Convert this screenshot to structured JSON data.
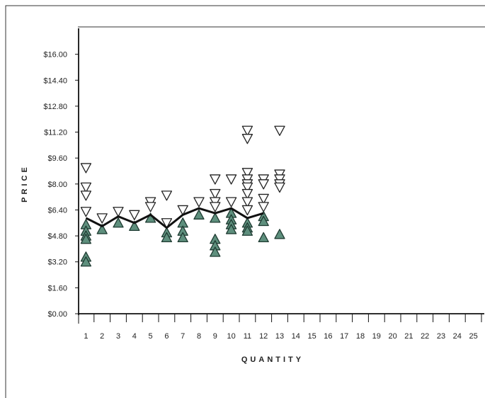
{
  "chart_data": {
    "type": "scatter",
    "xlabel": "QUANTITY",
    "ylabel": "PRICE",
    "xlim": [
      0.5,
      25.5
    ],
    "ylim": [
      0,
      17.6
    ],
    "x_ticks": [
      "1",
      "2",
      "3",
      "4",
      "5",
      "6",
      "7",
      "8",
      "9",
      "10",
      "11",
      "12",
      "13",
      "14",
      "15",
      "16",
      "17",
      "18",
      "19",
      "20",
      "21",
      "22",
      "23",
      "24",
      "25"
    ],
    "y_ticks": [
      {
        "value": 0.0,
        "label": "$0.00"
      },
      {
        "value": 1.6,
        "label": "$1.60"
      },
      {
        "value": 3.2,
        "label": "$3.20"
      },
      {
        "value": 4.8,
        "label": "$4.80"
      },
      {
        "value": 6.4,
        "label": "$6.40"
      },
      {
        "value": 8.0,
        "label": "$8.00"
      },
      {
        "value": 9.6,
        "label": "$9.60"
      },
      {
        "value": 11.2,
        "label": "$11.20"
      },
      {
        "value": 12.8,
        "label": "$12.80"
      },
      {
        "value": 14.4,
        "label": "$14.40"
      },
      {
        "value": 16.0,
        "label": "$16.00"
      }
    ],
    "grid": false,
    "series": [
      {
        "marker": "open-down-triangle",
        "color": "#ffffff",
        "stroke": "#222222",
        "points": [
          [
            1,
            9.0
          ],
          [
            1,
            7.8
          ],
          [
            1,
            7.3
          ],
          [
            1,
            6.3
          ],
          [
            2,
            5.9
          ],
          [
            3,
            6.3
          ],
          [
            4,
            6.1
          ],
          [
            5,
            6.9
          ],
          [
            5,
            6.6
          ],
          [
            6,
            7.3
          ],
          [
            6,
            5.6
          ],
          [
            7,
            6.4
          ],
          [
            8,
            6.9
          ],
          [
            9,
            8.3
          ],
          [
            9,
            7.4
          ],
          [
            9,
            6.9
          ],
          [
            9,
            6.6
          ],
          [
            10,
            8.3
          ],
          [
            10,
            6.9
          ],
          [
            11,
            11.3
          ],
          [
            11,
            10.8
          ],
          [
            11,
            8.7
          ],
          [
            11,
            8.3
          ],
          [
            11,
            8.0
          ],
          [
            11,
            7.8
          ],
          [
            11,
            7.4
          ],
          [
            11,
            6.9
          ],
          [
            11,
            6.4
          ],
          [
            12,
            8.3
          ],
          [
            12,
            8.0
          ],
          [
            12,
            7.1
          ],
          [
            12,
            6.6
          ],
          [
            13,
            11.3
          ],
          [
            13,
            8.6
          ],
          [
            13,
            8.3
          ],
          [
            13,
            8.0
          ],
          [
            13,
            7.8
          ]
        ]
      },
      {
        "marker": "filled-up-triangle",
        "color": "#5e8f7d",
        "stroke": "#1f3b32",
        "points": [
          [
            1,
            5.5
          ],
          [
            1,
            5.1
          ],
          [
            1,
            4.8
          ],
          [
            1,
            4.6
          ],
          [
            1,
            3.5
          ],
          [
            1,
            3.2
          ],
          [
            2,
            5.2
          ],
          [
            3,
            5.6
          ],
          [
            4,
            5.4
          ],
          [
            5,
            5.9
          ],
          [
            6,
            5.0
          ],
          [
            6,
            4.7
          ],
          [
            7,
            5.6
          ],
          [
            7,
            5.1
          ],
          [
            7,
            4.7
          ],
          [
            8,
            6.1
          ],
          [
            9,
            5.9
          ],
          [
            9,
            4.6
          ],
          [
            9,
            4.2
          ],
          [
            9,
            3.8
          ],
          [
            10,
            6.2
          ],
          [
            10,
            5.8
          ],
          [
            10,
            5.5
          ],
          [
            10,
            5.2
          ],
          [
            11,
            5.6
          ],
          [
            11,
            5.3
          ],
          [
            11,
            5.1
          ],
          [
            12,
            6.0
          ],
          [
            12,
            5.7
          ],
          [
            12,
            4.7
          ],
          [
            13,
            4.9
          ]
        ]
      }
    ],
    "line": {
      "color": "#111111",
      "points": [
        [
          1,
          5.9
        ],
        [
          2,
          5.4
        ],
        [
          3,
          6.0
        ],
        [
          4,
          5.6
        ],
        [
          5,
          6.1
        ],
        [
          6,
          5.3
        ],
        [
          7,
          6.1
        ],
        [
          8,
          6.5
        ],
        [
          9,
          6.2
        ],
        [
          10,
          6.5
        ],
        [
          11,
          5.9
        ],
        [
          12,
          6.2
        ]
      ]
    }
  }
}
